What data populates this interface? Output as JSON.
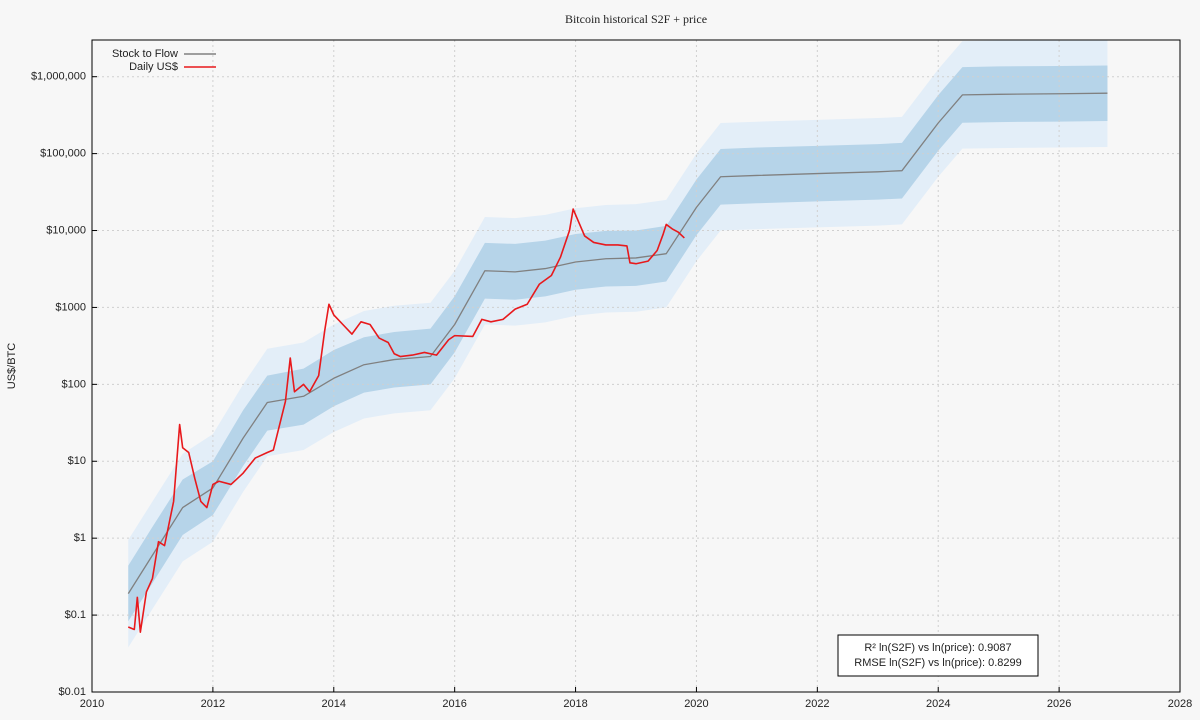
{
  "chart_data": {
    "type": "line",
    "title": "Bitcoin historical S2F + price",
    "ylabel": "US$/BTC",
    "log_y": true,
    "grid": true,
    "legend": "upper left",
    "annotations": [
      "R² ln(S2F) vs ln(price): 0.9087",
      "RMSE ln(S2F) vs ln(price): 0.8299"
    ],
    "xlim": [
      2010,
      2028
    ],
    "xticks": [
      2010,
      2012,
      2014,
      2016,
      2018,
      2020,
      2022,
      2024,
      2026,
      2028
    ],
    "ylim": [
      0.01,
      3000000
    ],
    "yticks": [
      {
        "value": 0.01,
        "label": "$0.01"
      },
      {
        "value": 0.1,
        "label": "$0.1"
      },
      {
        "value": 1,
        "label": "$1"
      },
      {
        "value": 10,
        "label": "$10"
      },
      {
        "value": 100,
        "label": "$100"
      },
      {
        "value": 1000,
        "label": "$1000"
      },
      {
        "value": 10000,
        "label": "$10,000"
      },
      {
        "value": 100000,
        "label": "$100,000"
      },
      {
        "value": 1000000,
        "label": "$1,000,000"
      }
    ],
    "series": [
      {
        "name": "Stock to Flow",
        "color": "#808080",
        "x": [
          2010.6,
          2011,
          2011.5,
          2012,
          2012.5,
          2012.9,
          2013.5,
          2014,
          2014.5,
          2015,
          2015.6,
          2016,
          2016.5,
          2017,
          2017.5,
          2018,
          2018.5,
          2019,
          2019.5,
          2020,
          2020.4,
          2021,
          2022,
          2023,
          2023.4,
          2024,
          2024.4,
          2025,
          2026,
          2026.8
        ],
        "values": [
          0.19,
          0.6,
          2.5,
          4.5,
          20,
          58,
          70,
          120,
          180,
          210,
          230,
          600,
          3000,
          2900,
          3200,
          3900,
          4300,
          4400,
          5000,
          20000,
          50000,
          52000,
          55000,
          58000,
          60000,
          250000,
          580000,
          590000,
          600000,
          610000
        ]
      },
      {
        "name": "Daily US$",
        "color": "#e8191c",
        "x": [
          2010.6,
          2010.7,
          2010.75,
          2010.8,
          2010.9,
          2011.0,
          2011.1,
          2011.2,
          2011.35,
          2011.45,
          2011.5,
          2011.6,
          2011.7,
          2011.8,
          2011.9,
          2012.0,
          2012.1,
          2012.3,
          2012.5,
          2012.7,
          2012.9,
          2013.0,
          2013.2,
          2013.28,
          2013.35,
          2013.5,
          2013.6,
          2013.75,
          2013.85,
          2013.92,
          2014.0,
          2014.15,
          2014.3,
          2014.45,
          2014.6,
          2014.75,
          2014.9,
          2015.0,
          2015.1,
          2015.3,
          2015.5,
          2015.7,
          2015.9,
          2016.0,
          2016.3,
          2016.45,
          2016.6,
          2016.8,
          2017.0,
          2017.2,
          2017.4,
          2017.6,
          2017.75,
          2017.9,
          2017.96,
          2018.05,
          2018.15,
          2018.3,
          2018.5,
          2018.7,
          2018.85,
          2018.9,
          2019.0,
          2019.2,
          2019.35,
          2019.45,
          2019.5,
          2019.6,
          2019.7,
          2019.8
        ],
        "values": [
          0.07,
          0.065,
          0.17,
          0.06,
          0.2,
          0.3,
          0.9,
          0.8,
          3,
          30,
          15,
          13,
          6,
          3,
          2.5,
          5,
          5.5,
          5,
          7,
          11,
          13,
          14,
          60,
          220,
          80,
          100,
          80,
          130,
          500,
          1100,
          800,
          600,
          450,
          650,
          600,
          400,
          350,
          250,
          230,
          240,
          260,
          240,
          380,
          430,
          420,
          700,
          650,
          700,
          950,
          1100,
          2000,
          2600,
          4500,
          10000,
          19000,
          13000,
          8500,
          7000,
          6500,
          6500,
          6300,
          3800,
          3700,
          4000,
          5500,
          9000,
          12000,
          10500,
          9500,
          8000
        ]
      }
    ],
    "bands": [
      {
        "color": "#e3eef8",
        "upper": [
          0.95,
          3,
          12.5,
          22.5,
          100,
          290,
          350,
          600,
          900,
          1050,
          1150,
          3000,
          15000,
          14500,
          16000,
          19500,
          21500,
          22000,
          25000,
          100000,
          250000,
          260000,
          275000,
          290000,
          300000,
          1250000,
          2900000,
          2950000,
          3000000,
          3050000
        ],
        "lower": [
          0.038,
          0.12,
          0.5,
          0.9,
          4,
          11.6,
          14,
          24,
          36,
          42,
          46,
          120,
          600,
          580,
          640,
          780,
          860,
          880,
          1000,
          4000,
          10000,
          10400,
          11000,
          11600,
          12000,
          50000,
          116000,
          118000,
          120000,
          122000
        ]
      },
      {
        "color": "#b6d4e9",
        "upper": [
          0.44,
          1.4,
          5.8,
          10,
          46,
          130,
          160,
          280,
          410,
          480,
          530,
          1400,
          6900,
          6700,
          7400,
          9000,
          9900,
          10000,
          11500,
          46000,
          115000,
          120000,
          126000,
          133000,
          138000,
          575000,
          1330000,
          1360000,
          1380000,
          1400000
        ],
        "lower": [
          0.083,
          0.26,
          1.1,
          2,
          8.7,
          25,
          30,
          52,
          78,
          91,
          100,
          260,
          1300,
          1260,
          1390,
          1700,
          1870,
          1910,
          2170,
          8700,
          21700,
          22600,
          23900,
          25200,
          26100,
          109000,
          252000,
          257000,
          261000,
          265000
        ]
      }
    ]
  }
}
